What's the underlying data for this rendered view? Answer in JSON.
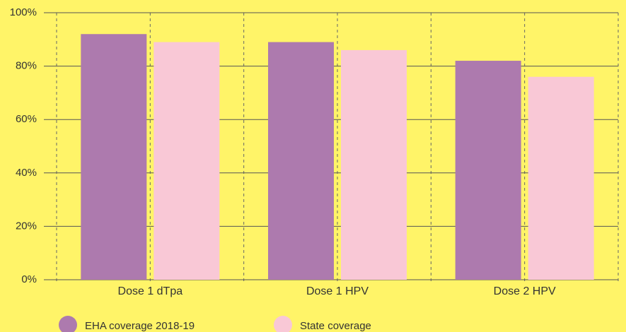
{
  "chart_data": {
    "type": "bar",
    "categories": [
      "Dose 1 dTpa",
      "Dose 1 HPV",
      "Dose 2 HPV"
    ],
    "series": [
      {
        "name": "EHA coverage 2018-19",
        "color": "#ad7aae",
        "values": [
          92,
          89,
          82
        ]
      },
      {
        "name": "State coverage",
        "color": "#f9c8d6",
        "values": [
          89,
          86,
          76
        ]
      }
    ],
    "ylim": [
      0,
      100
    ],
    "yticks": [
      {
        "value": 0,
        "label": "0%"
      },
      {
        "value": 20,
        "label": "20%"
      },
      {
        "value": 40,
        "label": "40%"
      },
      {
        "value": 60,
        "label": "60%"
      },
      {
        "value": 80,
        "label": "80%"
      },
      {
        "value": 100,
        "label": "100%"
      }
    ],
    "grid": true,
    "legend": "bottom-left"
  }
}
